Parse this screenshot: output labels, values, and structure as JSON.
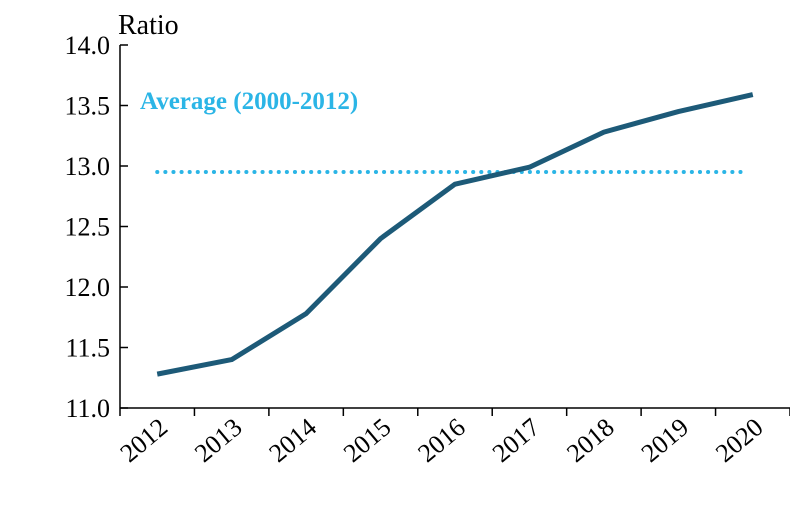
{
  "chart_data": {
    "type": "line",
    "y_label": "Ratio",
    "categories": [
      "2012",
      "2013",
      "2014",
      "2015",
      "2016",
      "2017",
      "2018",
      "2019",
      "2020"
    ],
    "series": [
      {
        "color": "#1d5a78",
        "values": [
          11.28,
          11.4,
          11.78,
          12.4,
          12.85,
          12.99,
          13.28,
          13.45,
          13.59
        ]
      }
    ],
    "average": {
      "value": 12.95,
      "label": "Average (2000-2012)",
      "color": "#2bb5e6"
    },
    "ylim": [
      11,
      14
    ],
    "yticks": [
      {
        "value": 11,
        "label": "11.0"
      },
      11.5,
      {
        "value": 12,
        "label": "12.0"
      },
      12.5,
      {
        "value": 13,
        "label": "13.0"
      },
      13.5,
      {
        "value": 14,
        "label": "14.0"
      }
    ]
  }
}
